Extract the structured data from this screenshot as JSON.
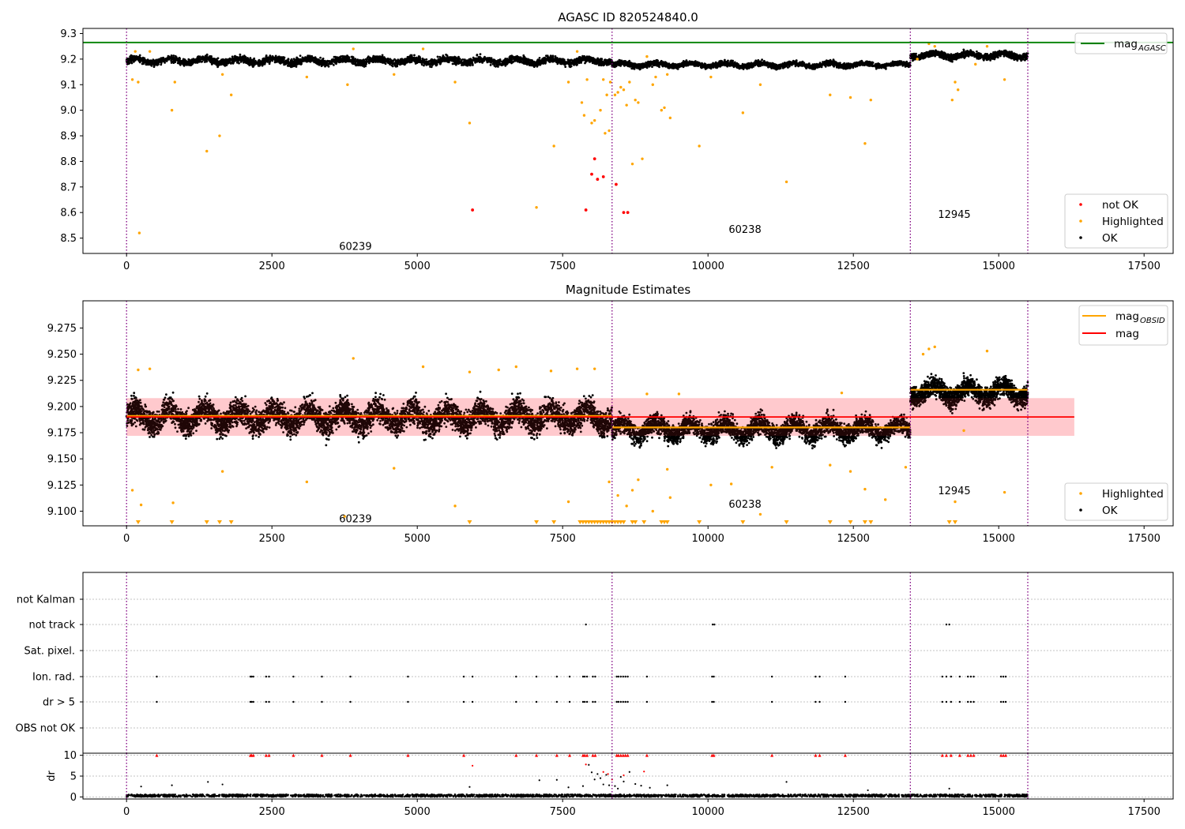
{
  "colors": {
    "ok": "#000000",
    "highlighted": "#ffa500",
    "not_ok": "#ff0000",
    "agasc_line": "#008000",
    "obsid_line": "#ffa500",
    "mag_line": "#ff0000",
    "mag_band": "#ffc0c8",
    "obs_boundary": "#800080",
    "grid": "#b0b0b0"
  },
  "chart_data": [
    {
      "id": "p1",
      "type": "scatter",
      "title": "AGASC ID 820524840.0",
      "xlim": [
        -750,
        18000
      ],
      "ylim": [
        8.44,
        9.32
      ],
      "xticks": [
        0,
        2500,
        5000,
        7500,
        10000,
        12500,
        15000,
        17500
      ],
      "xtick_labels": [
        "0",
        "2500",
        "5000",
        "7500",
        "10000",
        "12500",
        "15000",
        "17500"
      ],
      "yticks": [
        8.5,
        8.6,
        8.7,
        8.8,
        8.9,
        9.0,
        9.1,
        9.2,
        9.3
      ],
      "ytick_labels": [
        "8.5",
        "8.6",
        "8.7",
        "8.8",
        "8.9",
        "9.0",
        "9.1",
        "9.2",
        "9.3"
      ],
      "legend": [
        {
          "label": "mag",
          "sub": "AGASC",
          "kind": "line",
          "color": "#008000"
        }
      ],
      "legend2": [
        {
          "label": "not OK",
          "kind": "dot",
          "color": "#ff0000"
        },
        {
          "label": "Highlighted",
          "kind": "dot",
          "color": "#ffa500"
        },
        {
          "label": "OK",
          "kind": "dot",
          "color": "#000000"
        }
      ],
      "legend_position": "top-right",
      "legend2_position": "bottom-right",
      "hlines": [
        {
          "y": 9.265,
          "color": "#008000"
        }
      ],
      "ok_segments": [
        {
          "x0": 0,
          "x1": 8350,
          "center": 9.193,
          "spread": 0.024
        },
        {
          "x0": 8350,
          "x1": 13480,
          "center": 9.178,
          "spread": 0.018
        },
        {
          "x0": 13480,
          "x1": 15500,
          "center": 9.215,
          "spread": 0.022
        }
      ],
      "highlighted": [
        [
          100,
          9.12
        ],
        [
          150,
          9.23
        ],
        [
          200,
          9.11
        ],
        [
          220,
          8.52
        ],
        [
          400,
          9.23
        ],
        [
          780,
          9.0
        ],
        [
          830,
          9.11
        ],
        [
          1380,
          8.84
        ],
        [
          1600,
          8.9
        ],
        [
          1650,
          9.14
        ],
        [
          1800,
          9.06
        ],
        [
          3100,
          9.13
        ],
        [
          3800,
          9.1
        ],
        [
          3900,
          9.24
        ],
        [
          4600,
          9.14
        ],
        [
          5100,
          9.24
        ],
        [
          5650,
          9.11
        ],
        [
          5900,
          8.95
        ],
        [
          7050,
          8.62
        ],
        [
          7350,
          8.86
        ],
        [
          7600,
          9.11
        ],
        [
          7750,
          9.23
        ],
        [
          7830,
          9.03
        ],
        [
          7870,
          8.98
        ],
        [
          7920,
          9.12
        ],
        [
          8000,
          8.95
        ],
        [
          8050,
          8.96
        ],
        [
          8150,
          9.0
        ],
        [
          8200,
          9.12
        ],
        [
          8230,
          8.91
        ],
        [
          8260,
          9.06
        ],
        [
          8300,
          8.92
        ],
        [
          8320,
          9.11
        ],
        [
          8400,
          9.06
        ],
        [
          8450,
          9.07
        ],
        [
          8500,
          9.09
        ],
        [
          8550,
          9.08
        ],
        [
          8600,
          9.02
        ],
        [
          8650,
          9.11
        ],
        [
          8700,
          8.79
        ],
        [
          8750,
          9.04
        ],
        [
          8800,
          9.03
        ],
        [
          8870,
          8.81
        ],
        [
          8950,
          9.21
        ],
        [
          9050,
          9.1
        ],
        [
          9100,
          9.13
        ],
        [
          9200,
          9.0
        ],
        [
          9250,
          9.01
        ],
        [
          9300,
          9.14
        ],
        [
          9350,
          8.97
        ],
        [
          9850,
          8.86
        ],
        [
          10050,
          9.13
        ],
        [
          10600,
          8.99
        ],
        [
          10900,
          9.1
        ],
        [
          11350,
          8.72
        ],
        [
          12100,
          9.06
        ],
        [
          12450,
          9.05
        ],
        [
          12700,
          8.87
        ],
        [
          12800,
          9.04
        ],
        [
          13900,
          9.25
        ],
        [
          14200,
          9.04
        ],
        [
          14250,
          9.11
        ],
        [
          14300,
          9.08
        ],
        [
          14600,
          9.18
        ],
        [
          14800,
          9.25
        ],
        [
          15100,
          9.12
        ],
        [
          13600,
          9.2
        ],
        [
          13800,
          9.26
        ]
      ],
      "not_ok": [
        [
          5950,
          8.61
        ],
        [
          7900,
          8.61
        ],
        [
          8000,
          8.75
        ],
        [
          8050,
          8.81
        ],
        [
          8100,
          8.73
        ],
        [
          8200,
          8.74
        ],
        [
          8420,
          8.71
        ],
        [
          8550,
          8.6
        ],
        [
          8620,
          8.6
        ]
      ],
      "vlines": [
        0,
        8350,
        13480,
        15500
      ],
      "annotations": [
        {
          "text": "60239",
          "x": 3900,
          "y": 8.47
        },
        {
          "text": "60238",
          "x": 10600,
          "y": 8.535
        },
        {
          "text": "12945",
          "x": 14200,
          "y": 8.595
        }
      ]
    },
    {
      "id": "p2",
      "type": "scatter",
      "title": "Magnitude Estimates",
      "xlim": [
        -750,
        18000
      ],
      "ylim": [
        9.086,
        9.301
      ],
      "xticks": [
        0,
        2500,
        5000,
        7500,
        10000,
        12500,
        15000,
        17500
      ],
      "xtick_labels": [
        "0",
        "2500",
        "5000",
        "7500",
        "10000",
        "12500",
        "15000",
        "17500"
      ],
      "yticks": [
        9.1,
        9.125,
        9.15,
        9.175,
        9.2,
        9.225,
        9.25,
        9.275
      ],
      "ytick_labels": [
        "9.100",
        "9.125",
        "9.150",
        "9.175",
        "9.200",
        "9.225",
        "9.250",
        "9.275"
      ],
      "legend": [
        {
          "label": "mag",
          "sub": "OBSID",
          "kind": "line",
          "color": "#ffa500"
        },
        {
          "label": "mag",
          "sub": "",
          "kind": "line",
          "color": "#ff0000"
        }
      ],
      "legend2": [
        {
          "label": "Highlighted",
          "kind": "dot",
          "color": "#ffa500"
        },
        {
          "label": "OK",
          "kind": "dot",
          "color": "#000000"
        }
      ],
      "legend_position": "top-right",
      "legend2_position": "bottom-right",
      "band": {
        "x0": 0,
        "x1": 16300,
        "y0": 9.172,
        "y1": 9.208,
        "color": "#ffc0c8"
      },
      "mag_line": {
        "x0": 0,
        "x1": 16300,
        "y": 9.19,
        "color": "#ff0000"
      },
      "obsid_lines": [
        {
          "x0": 0,
          "x1": 8350,
          "y": 9.191
        },
        {
          "x0": 8350,
          "x1": 13480,
          "y": 9.18
        },
        {
          "x0": 13480,
          "x1": 15500,
          "y": 9.216
        }
      ],
      "ok_segments": [
        {
          "x0": 0,
          "x1": 8350,
          "center": 9.19,
          "spread": 0.022
        },
        {
          "x0": 8350,
          "x1": 13480,
          "center": 9.178,
          "spread": 0.017
        },
        {
          "x0": 13480,
          "x1": 15500,
          "center": 9.214,
          "spread": 0.018
        }
      ],
      "highlighted": [
        [
          100,
          9.12
        ],
        [
          200,
          9.235
        ],
        [
          250,
          9.106
        ],
        [
          400,
          9.236
        ],
        [
          800,
          9.108
        ],
        [
          1650,
          9.138
        ],
        [
          3100,
          9.128
        ],
        [
          3750,
          9.095
        ],
        [
          3900,
          9.246
        ],
        [
          4600,
          9.141
        ],
        [
          5100,
          9.238
        ],
        [
          5650,
          9.105
        ],
        [
          5900,
          9.233
        ],
        [
          6400,
          9.235
        ],
        [
          6700,
          9.238
        ],
        [
          7300,
          9.234
        ],
        [
          7600,
          9.109
        ],
        [
          7750,
          9.236
        ],
        [
          8050,
          9.236
        ],
        [
          8300,
          9.128
        ],
        [
          8450,
          9.115
        ],
        [
          8600,
          9.105
        ],
        [
          8700,
          9.12
        ],
        [
          8800,
          9.13
        ],
        [
          8950,
          9.212
        ],
        [
          9050,
          9.1
        ],
        [
          9300,
          9.14
        ],
        [
          9350,
          9.113
        ],
        [
          9500,
          9.212
        ],
        [
          10050,
          9.125
        ],
        [
          10400,
          9.126
        ],
        [
          10900,
          9.097
        ],
        [
          11100,
          9.142
        ],
        [
          12100,
          9.144
        ],
        [
          12300,
          9.213
        ],
        [
          12450,
          9.138
        ],
        [
          12700,
          9.121
        ],
        [
          13050,
          9.111
        ],
        [
          13400,
          9.142
        ],
        [
          13800,
          9.255
        ],
        [
          14250,
          9.109
        ],
        [
          14400,
          9.177
        ],
        [
          14800,
          9.253
        ],
        [
          15100,
          9.118
        ],
        [
          13700,
          9.25
        ],
        [
          13900,
          9.257
        ]
      ],
      "clipped_markers_x": [
        200,
        780,
        1380,
        1600,
        1800,
        5900,
        7050,
        7350,
        7800,
        7850,
        7900,
        7950,
        8000,
        8050,
        8100,
        8150,
        8200,
        8250,
        8300,
        8350,
        8400,
        8450,
        8500,
        8550,
        8700,
        8750,
        8900,
        9200,
        9250,
        9300,
        9850,
        10600,
        11350,
        12100,
        12450,
        12700,
        12800,
        14150,
        14250
      ],
      "vlines": [
        0,
        8350,
        13480,
        15500
      ],
      "annotations": [
        {
          "text": "60239",
          "x": 3900,
          "y": 9.093
        },
        {
          "text": "60238",
          "x": 10600,
          "y": 9.107
        },
        {
          "text": "12945",
          "x": 14200,
          "y": 9.12
        }
      ]
    },
    {
      "id": "p3",
      "type": "scatter",
      "title": "",
      "xlim": [
        -750,
        18000
      ],
      "categories": [
        "not Kalman",
        "not track",
        "Sat. pixel.",
        "Ion. rad.",
        "dr > 5",
        "OBS not OK"
      ],
      "flag_points": {
        "not track": [
          7900,
          10080,
          10110,
          14100,
          14150
        ],
        "Ion. rad.": [
          520,
          2130,
          2150,
          2180,
          2400,
          2450,
          2870,
          3360,
          3850,
          4840,
          5800,
          5950,
          6700,
          7050,
          7400,
          7620,
          7850,
          7880,
          7920,
          8020,
          8060,
          8430,
          8460,
          8500,
          8540,
          8580,
          8620,
          8950,
          10070,
          10100,
          11100,
          11850,
          11920,
          12360,
          14030,
          14100,
          14180,
          14330,
          14470,
          14520,
          14570,
          15040,
          15080,
          15120
        ],
        "dr > 5": [
          520,
          2130,
          2150,
          2180,
          2400,
          2450,
          2870,
          3360,
          3850,
          4840,
          5800,
          5950,
          6700,
          7050,
          7400,
          7620,
          7850,
          7880,
          7920,
          8020,
          8060,
          8430,
          8460,
          8500,
          8540,
          8580,
          8620,
          8950,
          10070,
          10100,
          11100,
          11850,
          11920,
          12360,
          14030,
          14100,
          14180,
          14330,
          14470,
          14520,
          14570,
          15040,
          15080,
          15120
        ]
      },
      "vlines": [
        0,
        8350,
        13480,
        15500
      ]
    },
    {
      "id": "p4",
      "type": "scatter",
      "title": "",
      "xlim": [
        -750,
        18000
      ],
      "ylim": [
        -0.5,
        10.5
      ],
      "xticks": [
        0,
        2500,
        5000,
        7500,
        10000,
        12500,
        15000,
        17500
      ],
      "xtick_labels": [
        "0",
        "2500",
        "5000",
        "7500",
        "10000",
        "12500",
        "15000",
        "17500"
      ],
      "yticks": [
        0,
        5,
        10
      ],
      "ytick_labels": [
        "0",
        "5",
        "10"
      ],
      "ylabel": "dr",
      "baseline": {
        "x0": 0,
        "x1": 15500,
        "center": 0.3,
        "spread": 0.3
      },
      "low_points": [
        [
          250,
          2.5
        ],
        [
          780,
          2.8
        ],
        [
          1400,
          3.6
        ],
        [
          1650,
          3.0
        ],
        [
          5900,
          2.4
        ],
        [
          7100,
          4.0
        ],
        [
          7400,
          4.1
        ],
        [
          7600,
          2.3
        ],
        [
          7850,
          2.6
        ],
        [
          7950,
          7.7
        ],
        [
          8000,
          5.9
        ],
        [
          8050,
          4.2
        ],
        [
          8100,
          5.5
        ],
        [
          8150,
          4.5
        ],
        [
          8200,
          3.0
        ],
        [
          8250,
          5.3
        ],
        [
          8300,
          2.8
        ],
        [
          8400,
          2.6
        ],
        [
          8450,
          2.0
        ],
        [
          8500,
          4.8
        ],
        [
          8550,
          3.7
        ],
        [
          8650,
          6.0
        ],
        [
          8750,
          3.1
        ],
        [
          8850,
          2.7
        ],
        [
          9000,
          2.2
        ],
        [
          9300,
          2.8
        ],
        [
          11350,
          3.6
        ],
        [
          12750,
          1.6
        ],
        [
          14150,
          2.0
        ]
      ],
      "red_points": [
        [
          5950,
          7.5
        ],
        [
          7900,
          7.8
        ],
        [
          8200,
          6.0
        ],
        [
          8280,
          5.5
        ],
        [
          8350,
          4.2
        ],
        [
          8550,
          5.2
        ],
        [
          8900,
          6.1
        ]
      ],
      "red_clipped_x": [
        520,
        2130,
        2150,
        2180,
        2400,
        2450,
        2870,
        3360,
        3850,
        4840,
        5800,
        6700,
        7050,
        7400,
        7620,
        7850,
        7880,
        7920,
        8020,
        8060,
        8430,
        8460,
        8500,
        8540,
        8580,
        8620,
        8950,
        10070,
        10100,
        11100,
        11850,
        11920,
        12360,
        14030,
        14100,
        14180,
        14330,
        14470,
        14520,
        14570,
        15040,
        15080,
        15120
      ],
      "vlines": [
        0,
        8350,
        13480,
        15500
      ]
    }
  ]
}
